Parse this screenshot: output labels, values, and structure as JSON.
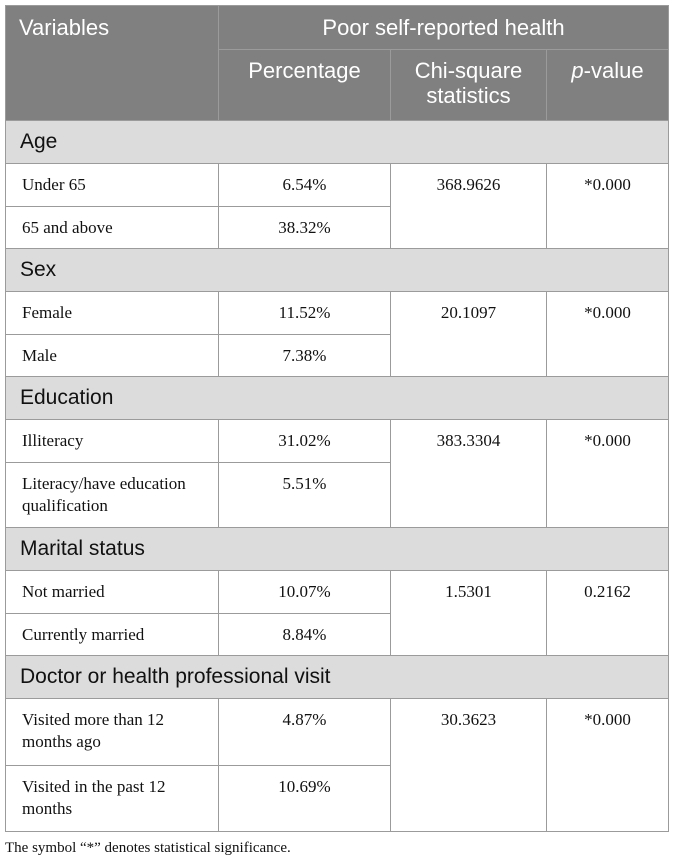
{
  "table": {
    "headers": {
      "variables": "Variables",
      "group": "Poor self-reported health",
      "percentage": "Percentage",
      "chi_square": "Chi-square statistics",
      "p_value_italic": "p",
      "p_value_rest": "-value"
    },
    "sections": [
      {
        "title": "Age",
        "rows": [
          {
            "label": "Under 65",
            "percentage": "6.54%"
          },
          {
            "label": "65 and above",
            "percentage": "38.32%"
          }
        ],
        "chi_square": "368.9626",
        "p_value": "*0.000"
      },
      {
        "title": "Sex",
        "rows": [
          {
            "label": "Female",
            "percentage": "11.52%"
          },
          {
            "label": "Male",
            "percentage": "7.38%"
          }
        ],
        "chi_square": "20.1097",
        "p_value": "*0.000"
      },
      {
        "title": "Education",
        "rows": [
          {
            "label": "Illiteracy",
            "percentage": "31.02%"
          },
          {
            "label": "Literacy/have education qualification",
            "percentage": "5.51%"
          }
        ],
        "chi_square": "383.3304",
        "p_value": "*0.000"
      },
      {
        "title": "Marital status",
        "rows": [
          {
            "label": "Not married",
            "percentage": "10.07%"
          },
          {
            "label": "Currently married",
            "percentage": "8.84%"
          }
        ],
        "chi_square": "1.5301",
        "p_value": "0.2162"
      },
      {
        "title": "Doctor or health professional visit",
        "rows": [
          {
            "label": "Visited more than 12 months ago",
            "percentage": "4.87%"
          },
          {
            "label": "Visited in the past 12 months",
            "percentage": "10.69%"
          }
        ],
        "chi_square": "30.3623",
        "p_value": "*0.000"
      }
    ]
  },
  "footnote": "The symbol “*” denotes statistical significance."
}
